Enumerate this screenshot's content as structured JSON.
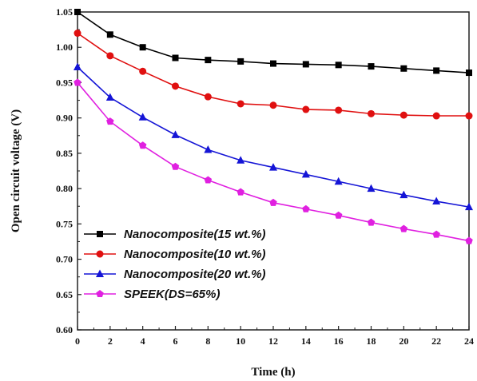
{
  "chart_data": {
    "type": "line",
    "xlabel": "Time (h)",
    "ylabel": "Open circuit voltage (V)",
    "xlim": [
      0,
      24
    ],
    "ylim": [
      0.6,
      1.05
    ],
    "xticks": [
      "0",
      "2",
      "4",
      "6",
      "8",
      "10",
      "12",
      "14",
      "16",
      "18",
      "20",
      "22",
      "24"
    ],
    "yticks": [
      "0.60",
      "0.65",
      "0.70",
      "0.75",
      "0.80",
      "0.85",
      "0.90",
      "0.95",
      "1.00",
      "1.05"
    ],
    "grid": false,
    "legend_position": "bottom-left",
    "x": [
      0,
      2,
      4,
      6,
      8,
      10,
      12,
      14,
      16,
      18,
      20,
      22,
      24
    ],
    "series": [
      {
        "name": "Nanocomposite(15 wt.%)",
        "color": "#000000",
        "marker": "square",
        "values": [
          1.05,
          1.018,
          1.0,
          0.985,
          0.982,
          0.98,
          0.977,
          0.976,
          0.975,
          0.973,
          0.97,
          0.967,
          0.964
        ]
      },
      {
        "name": "Nanocomposite(10 wt.%)",
        "color": "#e01010",
        "marker": "circle",
        "values": [
          1.02,
          0.988,
          0.966,
          0.945,
          0.93,
          0.92,
          0.918,
          0.912,
          0.911,
          0.906,
          0.904,
          0.903,
          0.903
        ]
      },
      {
        "name": "Nanocomposite(20 wt.%)",
        "color": "#1515d6",
        "marker": "triangle",
        "values": [
          0.972,
          0.929,
          0.901,
          0.876,
          0.855,
          0.84,
          0.83,
          0.82,
          0.81,
          0.8,
          0.791,
          0.782,
          0.774
        ]
      },
      {
        "name": "SPEEK(DS=65%)",
        "color": "#e020e0",
        "marker": "pentagon",
        "values": [
          0.95,
          0.895,
          0.861,
          0.831,
          0.812,
          0.795,
          0.78,
          0.771,
          0.762,
          0.752,
          0.743,
          0.735,
          0.726
        ]
      }
    ]
  }
}
